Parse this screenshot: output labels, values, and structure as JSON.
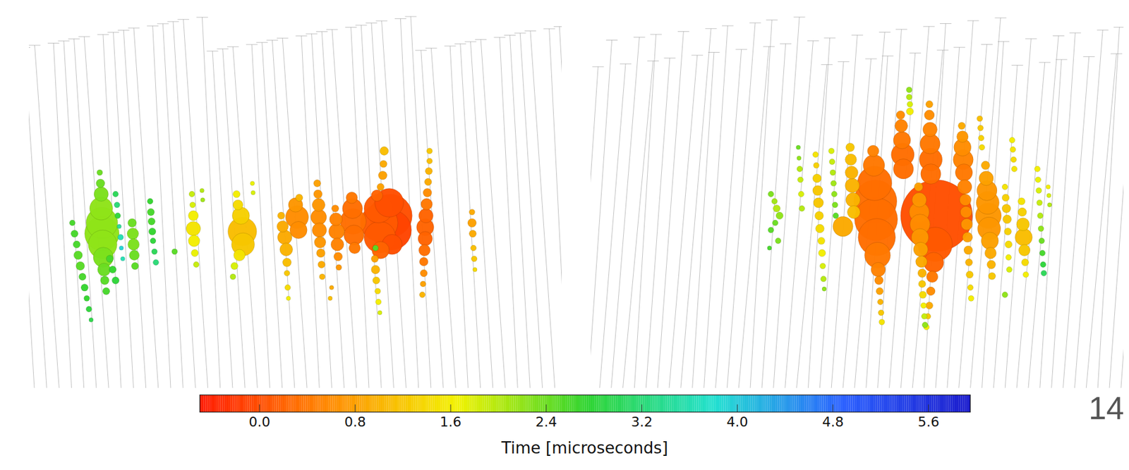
{
  "chart_data": [
    {
      "type": "scatter",
      "xlim": [
        0,
        740
      ],
      "ylim": [
        0,
        520
      ],
      "tick_labels": false,
      "x": [
        60,
        63,
        66,
        68,
        71,
        74,
        77,
        80,
        83,
        86,
        98,
        99,
        100,
        100,
        101,
        101,
        102,
        103,
        104,
        105,
        107,
        112,
        116,
        120,
        120,
        122,
        123,
        125,
        127,
        128,
        130,
        143,
        144,
        145,
        146,
        147,
        168,
        169,
        170,
        171,
        172,
        174,
        176,
        202,
        226,
        227,
        228,
        228,
        229,
        230,
        232,
        240,
        241,
        288,
        290,
        294,
        296,
        297,
        292,
        285,
        283,
        310,
        311,
        350,
        352,
        355,
        357,
        358,
        358,
        359,
        360,
        370,
        372,
        374,
        375,
        400,
        401,
        402,
        402,
        403,
        404,
        405,
        406,
        407,
        425,
        426,
        427,
        428,
        429,
        430,
        420,
        418,
        448,
        449,
        450,
        451,
        452,
        483,
        485,
        486,
        487,
        488,
        500,
        502,
        503,
        504,
        493,
        492,
        491,
        488,
        480,
        481,
        482,
        484,
        485,
        487,
        481,
        556,
        556,
        555,
        554,
        553,
        552,
        551,
        550,
        550,
        549,
        548,
        548,
        547,
        546,
        615,
        615,
        616,
        617,
        618,
        619
      ],
      "y": [
        230,
        215,
        200,
        185,
        170,
        155,
        140,
        125,
        110,
        95,
        300,
        285,
        270,
        250,
        230,
        215,
        200,
        182,
        165,
        150,
        135,
        180,
        165,
        150,
        270,
        255,
        240,
        225,
        210,
        195,
        180,
        230,
        215,
        200,
        185,
        170,
        260,
        245,
        232,
        218,
        205,
        190,
        175,
        190,
        270,
        255,
        240,
        222,
        205,
        188,
        172,
        275,
        262,
        270,
        255,
        240,
        218,
        200,
        185,
        170,
        155,
        285,
        272,
        240,
        225,
        210,
        193,
        175,
        160,
        140,
        125,
        255,
        238,
        220,
        265,
        285,
        270,
        255,
        238,
        220,
        203,
        188,
        172,
        155,
        250,
        235,
        218,
        200,
        183,
        168,
        140,
        125,
        265,
        250,
        232,
        213,
        195,
        268,
        250,
        230,
        210,
        192,
        258,
        240,
        220,
        200,
        330,
        312,
        296,
        280,
        180,
        165,
        150,
        135,
        120,
        105,
        195,
        330,
        316,
        302,
        287,
        272,
        256,
        240,
        224,
        208,
        192,
        176,
        160,
        145,
        130,
        245,
        230,
        215,
        195,
        180,
        165
      ],
      "size": [
        4,
        5,
        5,
        6,
        6,
        5,
        5,
        4,
        4,
        3,
        4,
        6,
        10,
        16,
        22,
        24,
        20,
        14,
        9,
        6,
        5,
        5,
        5,
        5,
        4,
        4,
        4,
        3,
        4,
        3,
        3,
        6,
        8,
        8,
        7,
        5,
        4,
        5,
        5,
        5,
        4,
        4,
        4,
        4,
        4,
        4,
        7,
        10,
        8,
        5,
        4,
        3,
        3,
        5,
        7,
        12,
        20,
        16,
        8,
        5,
        4,
        3,
        3,
        5,
        8,
        10,
        9,
        6,
        4,
        4,
        3,
        10,
        16,
        12,
        5,
        5,
        6,
        9,
        11,
        10,
        8,
        6,
        5,
        4,
        5,
        9,
        11,
        9,
        6,
        4,
        3,
        3,
        8,
        14,
        18,
        14,
        8,
        8,
        20,
        26,
        22,
        12,
        20,
        30,
        28,
        14,
        6,
        5,
        6,
        5,
        5,
        6,
        5,
        4,
        4,
        3,
        4,
        4,
        4,
        5,
        5,
        6,
        8,
        10,
        12,
        10,
        8,
        6,
        5,
        4,
        4,
        4,
        6,
        5,
        4,
        4,
        3
      ],
      "time": [
        2.6,
        2.6,
        2.6,
        2.5,
        2.5,
        2.6,
        2.7,
        2.7,
        2.8,
        2.9,
        2.4,
        2.4,
        2.3,
        2.2,
        2.2,
        2.2,
        2.2,
        2.3,
        2.4,
        2.5,
        2.6,
        2.6,
        2.7,
        2.8,
        3.0,
        3.2,
        2.8,
        3.4,
        3.6,
        3.9,
        3.6,
        2.4,
        2.3,
        2.3,
        2.4,
        2.5,
        2.7,
        2.6,
        2.6,
        2.7,
        2.8,
        3.0,
        3.2,
        2.5,
        1.9,
        1.8,
        1.6,
        1.5,
        1.6,
        1.7,
        1.9,
        2.0,
        2.1,
        1.6,
        1.4,
        1.3,
        1.1,
        1.2,
        1.5,
        1.8,
        2.0,
        1.7,
        1.8,
        1.0,
        0.9,
        0.9,
        1.0,
        1.1,
        1.2,
        1.4,
        1.6,
        0.7,
        0.6,
        0.6,
        1.0,
        0.8,
        0.7,
        0.7,
        0.6,
        0.6,
        0.7,
        0.8,
        0.9,
        1.0,
        0.6,
        0.5,
        0.5,
        0.5,
        0.6,
        0.7,
        0.9,
        1.1,
        0.4,
        0.3,
        0.3,
        0.3,
        0.4,
        0.2,
        0.1,
        0.1,
        0.1,
        0.2,
        0.0,
        0.0,
        -0.1,
        0.0,
        1.1,
        0.9,
        0.8,
        0.8,
        0.8,
        1.0,
        1.2,
        1.4,
        1.6,
        1.8,
        2.5,
        1.2,
        1.1,
        1.0,
        0.9,
        0.6,
        0.4,
        0.2,
        0.2,
        0.2,
        0.3,
        0.4,
        0.6,
        0.8,
        1.0,
        0.9,
        0.8,
        0.9,
        1.1,
        1.2,
        1.4
      ]
    },
    {
      "type": "scatter",
      "xlim": [
        0,
        740
      ],
      "ylim": [
        0,
        520
      ],
      "tick_labels": false,
      "x": [
        250,
        255,
        258,
        262,
        256,
        250,
        248,
        260,
        288,
        289,
        290,
        291,
        292,
        293,
        312,
        313,
        314,
        315,
        316,
        317,
        318,
        320,
        321,
        322,
        323,
        324,
        334,
        335,
        336,
        337,
        338,
        339,
        340,
        350,
        360,
        361,
        362,
        363,
        364,
        365,
        392,
        393,
        394,
        395,
        396,
        397,
        398,
        399,
        400,
        401,
        402,
        403,
        404,
        430,
        431,
        432,
        433,
        434,
        442,
        442,
        443,
        443,
        480,
        478,
        476,
        474,
        472,
        470,
        468,
        466,
        470,
        470,
        471,
        471,
        472,
        472,
        455,
        456,
        456,
        457,
        457,
        458,
        459,
        460,
        460,
        461,
        462,
        463,
        464,
        515,
        516,
        516,
        517,
        518,
        519,
        520,
        521,
        522,
        523,
        524,
        525,
        526,
        527,
        528,
        540,
        541,
        542,
        543,
        548,
        549,
        550,
        551,
        552,
        553,
        554,
        555,
        556,
        557,
        575,
        576,
        577,
        578,
        579,
        580,
        580,
        581,
        575,
        585,
        586,
        587,
        588,
        598,
        599,
        600,
        601,
        602,
        603,
        604,
        620,
        621,
        622,
        623,
        624,
        625,
        626,
        627,
        628,
        629,
        635,
        636,
        637
      ],
      "y": [
        270,
        260,
        250,
        240,
        230,
        220,
        195,
        205,
        335,
        320,
        305,
        290,
        270,
        250,
        325,
        310,
        292,
        275,
        258,
        240,
        222,
        205,
        188,
        170,
        152,
        138,
        330,
        315,
        300,
        285,
        270,
        255,
        240,
        225,
        335,
        318,
        300,
        282,
        262,
        245,
        330,
        310,
        285,
        260,
        235,
        210,
        185,
        165,
        150,
        135,
        120,
        105,
        92,
        380,
        365,
        345,
        325,
        305,
        415,
        405,
        395,
        385,
        240,
        200,
        175,
        155,
        135,
        115,
        100,
        85,
        395,
        380,
        360,
        340,
        318,
        298,
        280,
        262,
        245,
        228,
        210,
        193,
        176,
        160,
        145,
        130,
        115,
        100,
        88,
        365,
        350,
        335,
        318,
        300,
        280,
        262,
        245,
        228,
        210,
        192,
        175,
        158,
        140,
        125,
        375,
        362,
        348,
        335,
        310,
        292,
        275,
        258,
        240,
        222,
        205,
        188,
        172,
        156,
        280,
        265,
        250,
        235,
        218,
        200,
        182,
        165,
        130,
        345,
        332,
        318,
        305,
        260,
        245,
        228,
        210,
        192,
        175,
        158,
        305,
        290,
        275,
        258,
        240,
        222,
        205,
        188,
        172,
        160,
        280,
        268,
        255
      ],
      "size": [
        4,
        4,
        5,
        5,
        4,
        4,
        3,
        4,
        3,
        3,
        4,
        4,
        4,
        4,
        4,
        4,
        6,
        7,
        7,
        6,
        6,
        5,
        5,
        4,
        4,
        3,
        4,
        4,
        4,
        4,
        4,
        4,
        4,
        14,
        6,
        8,
        9,
        10,
        10,
        9,
        8,
        15,
        24,
        30,
        30,
        26,
        18,
        10,
        6,
        5,
        4,
        4,
        4,
        6,
        9,
        12,
        16,
        14,
        4,
        4,
        4,
        5,
        50,
        24,
        14,
        8,
        6,
        5,
        4,
        4,
        5,
        7,
        10,
        14,
        16,
        14,
        6,
        10,
        14,
        14,
        12,
        10,
        8,
        6,
        5,
        5,
        4,
        4,
        4,
        5,
        8,
        12,
        14,
        12,
        10,
        8,
        8,
        8,
        7,
        6,
        5,
        5,
        4,
        4,
        4,
        4,
        4,
        4,
        6,
        10,
        14,
        16,
        18,
        16,
        12,
        8,
        6,
        5,
        4,
        5,
        6,
        6,
        5,
        5,
        4,
        4,
        4,
        4,
        4,
        4,
        4,
        5,
        6,
        9,
        12,
        8,
        5,
        4,
        4,
        4,
        4,
        4,
        4,
        4,
        4,
        4,
        4,
        4,
        3,
        3,
        3
      ],
      "time": [
        2.3,
        2.1,
        2.0,
        2.2,
        2.4,
        2.5,
        2.6,
        2.3,
        2.4,
        2.2,
        2.0,
        1.9,
        1.8,
        2.0,
        1.5,
        1.3,
        1.3,
        1.2,
        1.2,
        1.3,
        1.4,
        1.5,
        1.6,
        1.8,
        2.0,
        2.2,
        1.8,
        1.9,
        2.0,
        2.1,
        2.2,
        2.3,
        2.5,
        0.9,
        1.2,
        1.1,
        1.0,
        1.0,
        1.0,
        1.1,
        0.5,
        0.4,
        0.3,
        0.3,
        0.3,
        0.3,
        0.4,
        0.5,
        0.6,
        0.8,
        1.0,
        1.2,
        1.5,
        0.6,
        0.5,
        0.4,
        0.3,
        0.3,
        2.2,
        2.0,
        1.8,
        1.6,
        0.0,
        0.1,
        0.2,
        0.4,
        0.6,
        0.9,
        1.2,
        1.6,
        0.8,
        0.6,
        0.5,
        0.4,
        0.3,
        0.3,
        0.8,
        0.7,
        0.6,
        0.6,
        0.7,
        0.8,
        0.9,
        1.0,
        1.2,
        1.4,
        1.6,
        1.9,
        2.2,
        0.9,
        0.7,
        0.6,
        0.5,
        0.4,
        0.5,
        0.6,
        0.6,
        0.7,
        0.8,
        0.9,
        1.0,
        1.2,
        1.4,
        1.6,
        1.1,
        1.2,
        1.3,
        1.4,
        0.9,
        0.8,
        0.7,
        0.7,
        0.7,
        0.7,
        0.8,
        0.9,
        1.0,
        1.2,
        1.5,
        1.3,
        1.2,
        1.2,
        1.3,
        1.4,
        1.6,
        1.8,
        2.2,
        1.6,
        1.5,
        1.4,
        1.5,
        1.5,
        1.3,
        1.2,
        1.1,
        1.2,
        1.4,
        1.6,
        1.6,
        1.7,
        1.8,
        1.9,
        2.0,
        2.2,
        2.4,
        2.6,
        2.8,
        3.0,
        1.6,
        1.8,
        2.0
      ]
    }
  ],
  "colorbar": {
    "label": "Time [microseconds]",
    "range": [
      -0.5,
      5.95
    ],
    "ticks": [
      {
        "value": 0,
        "label": "0.0"
      },
      0.8,
      1.6,
      2.4,
      3.2,
      {
        "value": 4,
        "label": "4.0"
      },
      4.8,
      5.6
    ]
  },
  "page_number": "14"
}
